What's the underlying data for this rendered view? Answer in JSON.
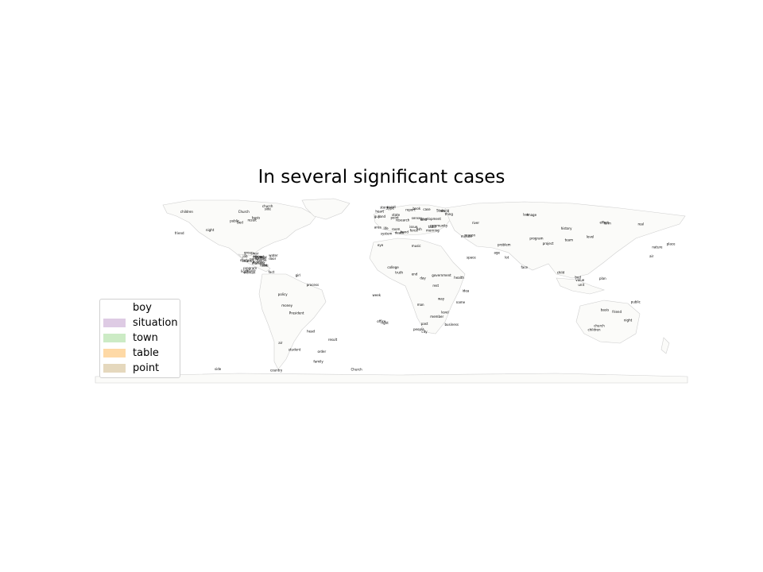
{
  "title": "In several significant cases",
  "legend": [
    {
      "label": "boy",
      "color": "#ffffff"
    },
    {
      "label": "situation",
      "color": "#decbe4"
    },
    {
      "label": "town",
      "color": "#ccebc5"
    },
    {
      "label": "table",
      "color": "#fed9a6"
    },
    {
      "label": "point",
      "color": "#e5d8bd"
    }
  ],
  "map_style": {
    "land": "#fbfbf9",
    "border": "#cfcfcf",
    "label_color": "#000000"
  },
  "place_labels": [
    "bed",
    "children",
    "public",
    "friend",
    "basis",
    "night",
    "church",
    "Church",
    "side",
    "result",
    "group",
    "fact",
    "country",
    "water",
    "moment",
    "field",
    "woman",
    "subject",
    "center",
    "program",
    "party",
    "light",
    "house",
    "House",
    "home",
    "line",
    "job",
    "war",
    "study",
    "food",
    "door",
    "mother",
    "student",
    "President",
    "policy",
    "process",
    "air",
    "family",
    "order",
    "head",
    "girl",
    "money",
    "point",
    "table",
    "death",
    "guy",
    "development",
    "system",
    "force",
    "kind",
    "life",
    "thing",
    "heart",
    "community",
    "morning",
    "room",
    "type",
    "story",
    "fish",
    "world",
    "book",
    "research",
    "land",
    "state",
    "State",
    "event",
    "case",
    "report",
    "sense",
    "area",
    "issue",
    "hand",
    "way",
    "truth",
    "office",
    "eye",
    "college",
    "week",
    "end",
    "past",
    "day",
    "right",
    "rest",
    "name",
    "people",
    "health",
    "man",
    "business",
    "city",
    "member",
    "music",
    "idea",
    "government",
    "level",
    "team",
    "air",
    "reason",
    "child",
    "effect",
    "form",
    "problem",
    "law",
    "place",
    "minute",
    "age",
    "lot",
    "face",
    "level",
    "real",
    "program",
    "nature",
    "river",
    "history",
    "project",
    "image",
    "space",
    "unit",
    "plan",
    "value"
  ]
}
